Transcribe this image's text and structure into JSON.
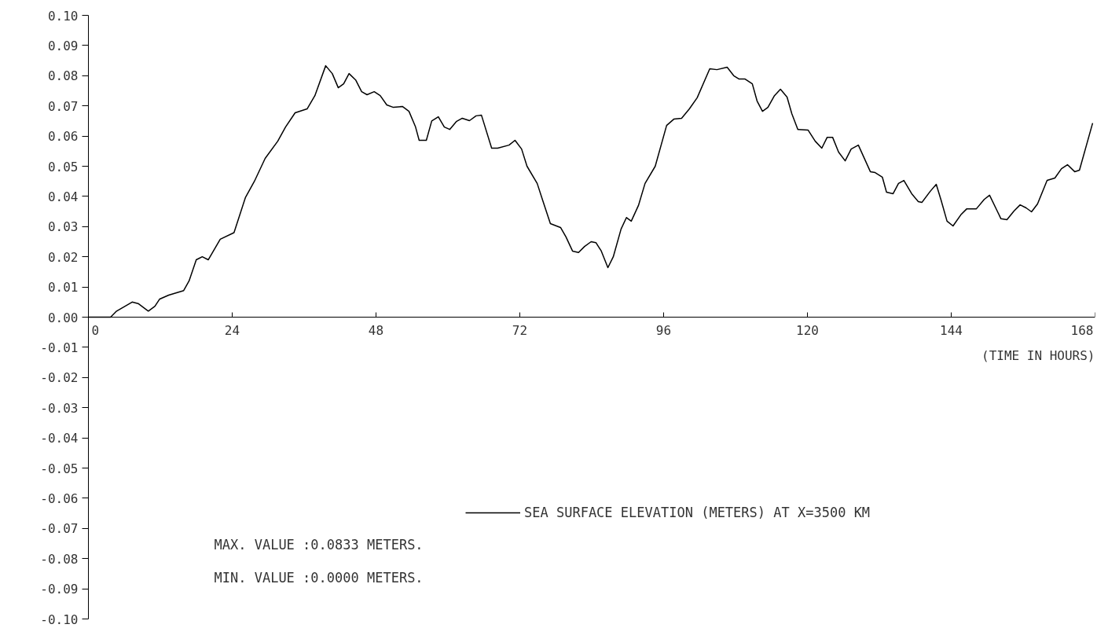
{
  "chart_data": {
    "type": "line",
    "xlabel": "(TIME IN HOURS)",
    "xlim": [
      0,
      168
    ],
    "xticks": [
      0,
      24,
      48,
      72,
      96,
      120,
      144,
      168
    ],
    "ylim": [
      -0.1,
      0.1
    ],
    "yticks": [
      {
        "value": -0.1,
        "label": "-0.10"
      },
      {
        "value": -0.09,
        "label": "-0.09"
      },
      {
        "value": -0.08,
        "label": "-0.08"
      },
      {
        "value": -0.07,
        "label": "-0.07"
      },
      {
        "value": -0.06,
        "label": "-0.06"
      },
      {
        "value": -0.05,
        "label": "-0.05"
      },
      {
        "value": -0.04,
        "label": "-0.04"
      },
      {
        "value": -0.03,
        "label": "-0.03"
      },
      {
        "value": -0.02,
        "label": "-0.02"
      },
      {
        "value": -0.01,
        "label": "-0.01"
      },
      {
        "value": 0,
        "label": "0.00"
      },
      {
        "value": 0.01,
        "label": "0.01"
      },
      {
        "value": 0.02,
        "label": "0.02"
      },
      {
        "value": 0.03,
        "label": "0.03"
      },
      {
        "value": 0.04,
        "label": "0.04"
      },
      {
        "value": 0.05,
        "label": "0.05"
      },
      {
        "value": 0.06,
        "label": "0.06"
      },
      {
        "value": 0.07,
        "label": "0.07"
      },
      {
        "value": 0.08,
        "label": "0.08"
      },
      {
        "value": 0.09,
        "label": "0.09"
      },
      {
        "value": 0.1,
        "label": "0.10"
      }
    ],
    "grid": false,
    "legend": "bottom right",
    "marker": "none",
    "line_style": "solid",
    "annotations": [
      "MAX. VALUE :0.0833 METERS.",
      "MIN. VALUE :0.0000 METERS."
    ],
    "series": [
      {
        "name": "SEA SURFACE ELEVATION (METERS) AT X=3500 KM",
        "color": "#000000",
        "x": [
          0,
          3.7,
          4.7,
          7.3,
          8.3,
          10,
          11.1,
          11.9,
          13.4,
          15.9,
          16.8,
          18,
          19,
          20,
          22,
          24.3,
          26.2,
          27.7,
          29.5,
          31.6,
          32.9,
          34.5,
          36.5,
          37.8,
          39.6,
          40.7,
          41.7,
          42.6,
          43.5,
          44.6,
          45.6,
          46.5,
          47.7,
          48.7,
          49.8,
          50.9,
          52.4,
          53.5,
          54.6,
          55.2,
          56.4,
          57.3,
          58.4,
          59.4,
          60.3,
          61.4,
          62.4,
          63.6,
          64.7,
          65.6,
          67.3,
          68.3,
          70.2,
          71.2,
          72.3,
          73.2,
          74.9,
          75.8,
          77.1,
          78.8,
          79.7,
          80.8,
          81.8,
          82.8,
          83.9,
          84.7,
          85.6,
          86.7,
          87.6,
          88.9,
          89.8,
          90.6,
          91.8,
          92.9,
          94.6,
          96.5,
          97.7,
          99,
          100.3,
          101.6,
          103.7,
          104.9,
          106.6,
          107.7,
          108.6,
          109.6,
          110.8,
          111.6,
          112.5,
          113.4,
          114.5,
          115.5,
          116.6,
          117.4,
          118.4,
          120.1,
          121.3,
          122.4,
          123.3,
          124.2,
          125.2,
          126.3,
          127.3,
          128.5,
          130.5,
          131.3,
          132.5,
          133.2,
          134.3,
          135.2,
          136.1,
          137.4,
          138.5,
          139.1,
          140.5,
          141.5,
          142.3,
          143.3,
          144.3,
          145.6,
          146.6,
          148.2,
          149.5,
          150.4,
          152.3,
          153.3,
          154.5,
          155.5,
          156.5,
          157.4,
          158.4,
          160,
          161.3,
          162.4,
          163.4,
          164.6,
          165.4,
          167.6
        ],
        "values": [
          0,
          0,
          0.002,
          0.005,
          0.0045,
          0.002,
          0.0036,
          0.006,
          0.0073,
          0.0088,
          0.012,
          0.019,
          0.02,
          0.019,
          0.0258,
          0.028,
          0.0396,
          0.045,
          0.0526,
          0.0583,
          0.063,
          0.0677,
          0.069,
          0.0734,
          0.0833,
          0.0807,
          0.076,
          0.0773,
          0.0807,
          0.0786,
          0.0747,
          0.0737,
          0.0747,
          0.0734,
          0.0703,
          0.0695,
          0.0698,
          0.0682,
          0.063,
          0.0586,
          0.0586,
          0.065,
          0.0664,
          0.063,
          0.0622,
          0.0648,
          0.0659,
          0.0651,
          0.0667,
          0.0669,
          0.056,
          0.056,
          0.057,
          0.0586,
          0.0557,
          0.05,
          0.0443,
          0.0388,
          0.031,
          0.0297,
          0.0266,
          0.0219,
          0.0214,
          0.0234,
          0.025,
          0.0247,
          0.0219,
          0.0164,
          0.02,
          0.0292,
          0.033,
          0.0318,
          0.037,
          0.0443,
          0.05,
          0.0635,
          0.0656,
          0.0659,
          0.069,
          0.0727,
          0.0823,
          0.082,
          0.0828,
          0.08,
          0.0789,
          0.0789,
          0.0773,
          0.0716,
          0.0682,
          0.0695,
          0.0734,
          0.0755,
          0.0729,
          0.0674,
          0.0622,
          0.062,
          0.0583,
          0.056,
          0.0596,
          0.0596,
          0.0547,
          0.0518,
          0.0557,
          0.057,
          0.0482,
          0.0479,
          0.0464,
          0.0414,
          0.0409,
          0.0443,
          0.0453,
          0.0409,
          0.0383,
          0.038,
          0.0417,
          0.044,
          0.0388,
          0.0318,
          0.0302,
          0.0339,
          0.0359,
          0.0359,
          0.039,
          0.0404,
          0.0326,
          0.0323,
          0.0352,
          0.0372,
          0.0362,
          0.0349,
          0.0375,
          0.0453,
          0.0461,
          0.0492,
          0.0505,
          0.0482,
          0.0487,
          0.0643
        ]
      }
    ]
  }
}
